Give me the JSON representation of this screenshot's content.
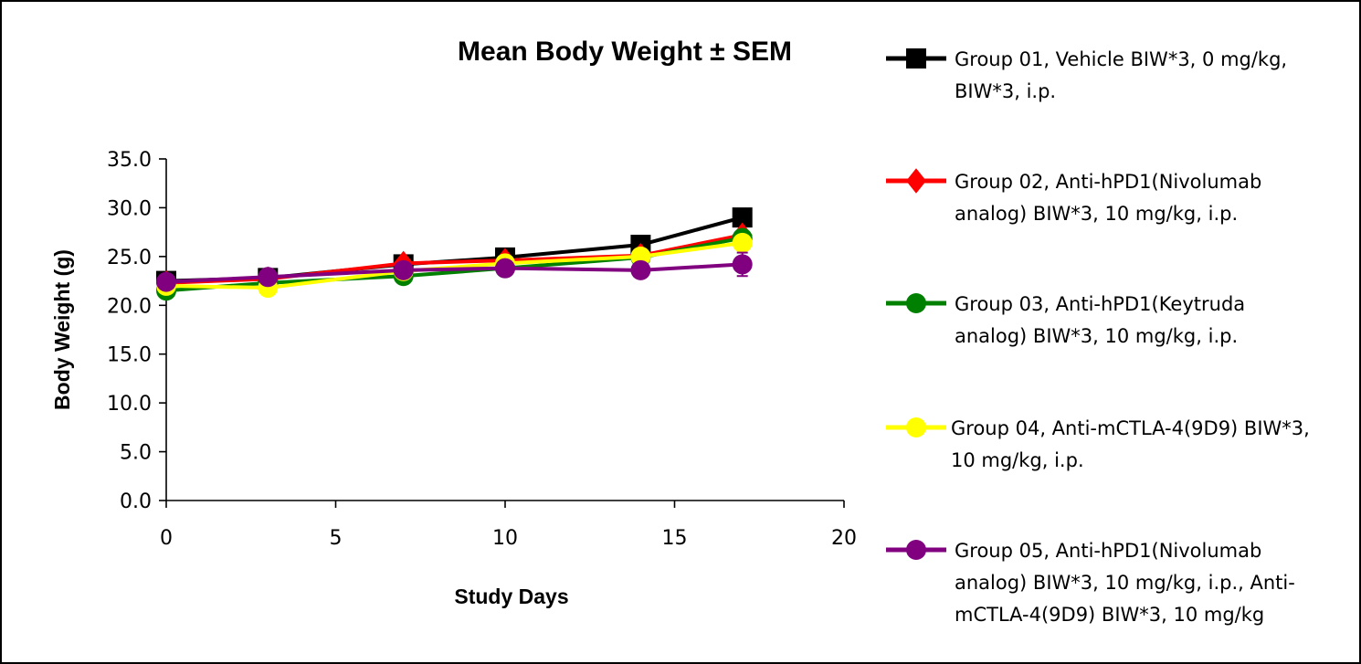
{
  "chart_data": {
    "type": "line",
    "title": "Mean Body Weight ± SEM",
    "xlabel": "Study Days",
    "ylabel": "Body Weight (g)",
    "xlim": [
      0,
      20
    ],
    "ylim": [
      0,
      35
    ],
    "x_ticks": [
      "0",
      "5",
      "10",
      "15",
      "20"
    ],
    "y_ticks": [
      "0.0",
      "5.0",
      "10.0",
      "15.0",
      "20.0",
      "25.0",
      "30.0",
      "35.0"
    ],
    "grid": false,
    "legend_position": "right",
    "x": [
      0,
      3,
      7,
      10,
      14,
      17
    ],
    "series": [
      {
        "name": "Group 01, Vehicle BIW*3, 0 mg/kg, BIW*3, i.p.",
        "legend_lines": [
          "Group 01, Vehicle BIW*3, 0 mg/kg,",
          "BIW*3, i.p."
        ],
        "color": "#000000",
        "marker": "square",
        "values": [
          22.5,
          22.8,
          24.2,
          24.9,
          26.2,
          29.0
        ],
        "sem": [
          0.3,
          0.3,
          0.3,
          0.3,
          0.4,
          0.5
        ]
      },
      {
        "name": "Group 02, Anti-hPD1(Nivolumab analog) BIW*3, 10 mg/kg, i.p.",
        "legend_lines": [
          "Group 02, Anti-hPD1(Nivolumab",
          "analog) BIW*3, 10 mg/kg, i.p."
        ],
        "color": "#ff0000",
        "marker": "diamond",
        "values": [
          22.3,
          22.7,
          24.3,
          24.6,
          25.1,
          27.2
        ],
        "sem": [
          0.3,
          0.3,
          0.3,
          0.3,
          0.3,
          0.4
        ]
      },
      {
        "name": "Group 03, Anti-hPD1(Keytruda analog) BIW*3, 10 mg/kg, i.p.",
        "legend_lines": [
          "Group 03, Anti-hPD1(Keytruda",
          "analog) BIW*3, 10 mg/kg, i.p."
        ],
        "color": "#008000",
        "marker": "circle",
        "values": [
          21.5,
          22.3,
          23.0,
          23.8,
          24.9,
          26.9
        ],
        "sem": [
          0.3,
          0.3,
          0.3,
          0.3,
          0.3,
          0.4
        ]
      },
      {
        "name": "Group 04, Anti-mCTLA-4(9D9) BIW*3, 10 mg/kg, i.p.",
        "legend_lines": [
          "Group 04, Anti-mCTLA-4(9D9) BIW*3,",
          "10 mg/kg, i.p."
        ],
        "color": "#ffff00",
        "marker": "circle",
        "values": [
          22.0,
          21.8,
          23.5,
          24.3,
          25.0,
          26.4
        ],
        "sem": [
          0.3,
          0.3,
          0.3,
          0.3,
          0.3,
          0.4
        ]
      },
      {
        "name": "Group 05, Anti-hPD1(Nivolumab analog) BIW*3, 10 mg/kg, i.p., Anti-mCTLA-4(9D9) BIW*3, 10 mg/kg",
        "legend_lines": [
          "Group 05, Anti-hPD1(Nivolumab",
          "analog) BIW*3, 10 mg/kg, i.p., Anti-",
          "mCTLA-4(9D9) BIW*3, 10 mg/kg"
        ],
        "color": "#800080",
        "marker": "circle",
        "values": [
          22.4,
          22.9,
          23.6,
          23.8,
          23.6,
          24.2
        ],
        "sem": [
          0.3,
          0.3,
          0.3,
          0.3,
          0.3,
          1.2
        ]
      }
    ]
  }
}
